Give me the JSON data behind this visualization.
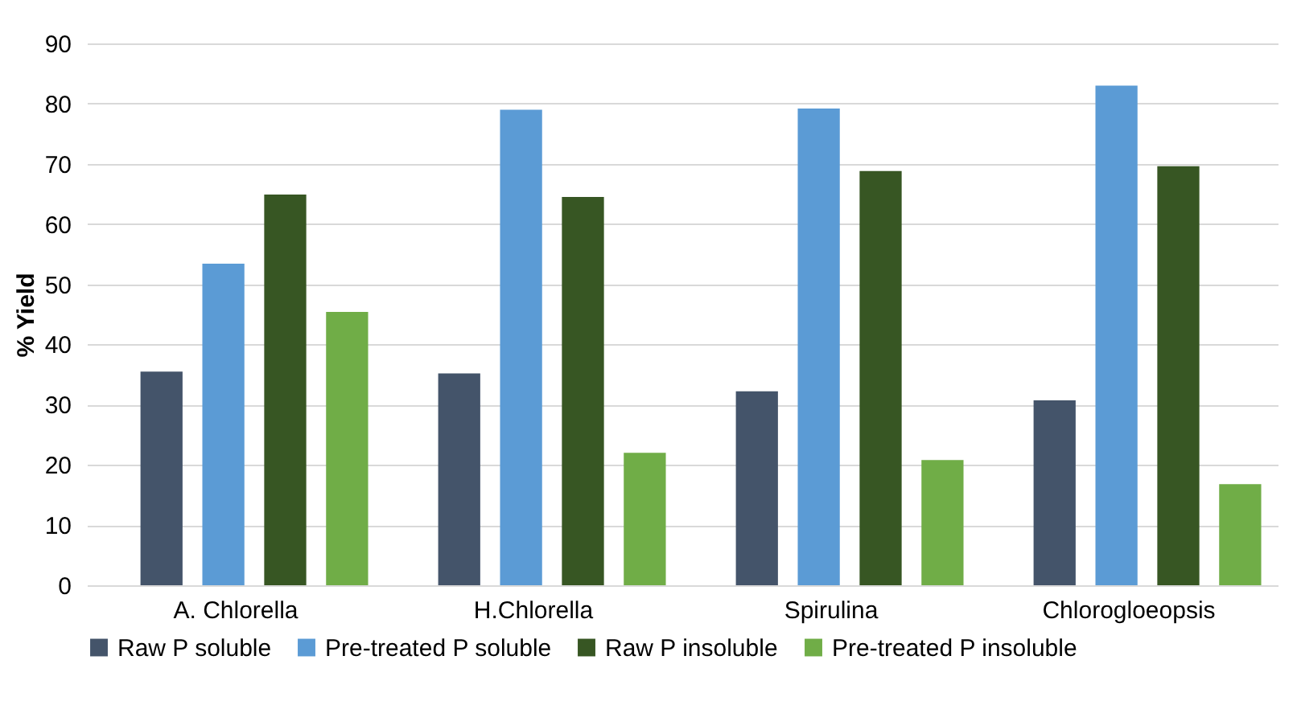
{
  "chart_data": {
    "type": "bar",
    "ylabel": "% Yield",
    "categories": [
      "A. Chlorella",
      "H.Chlorella",
      "Spirulina",
      "Chlorogloeopsis"
    ],
    "series": [
      {
        "name": "Raw P soluble",
        "color": "#44546a",
        "values": [
          35.5,
          35.2,
          32.2,
          30.7
        ]
      },
      {
        "name": "Pre-treated P soluble",
        "color": "#5b9bd5",
        "values": [
          53.4,
          79,
          79.2,
          83
        ]
      },
      {
        "name": "Raw P insoluble",
        "color": "#375623",
        "values": [
          64.9,
          64.5,
          68.8,
          69.6
        ]
      },
      {
        "name": "Pre-treated P insoluble",
        "color": "#70ad47",
        "values": [
          45.4,
          22,
          20.8,
          16.8
        ]
      }
    ],
    "ylim": [
      0,
      90
    ],
    "yticks": [
      0,
      10,
      20,
      30,
      40,
      50,
      60,
      70,
      80,
      90
    ],
    "grid": "y",
    "legend": "bottom"
  }
}
